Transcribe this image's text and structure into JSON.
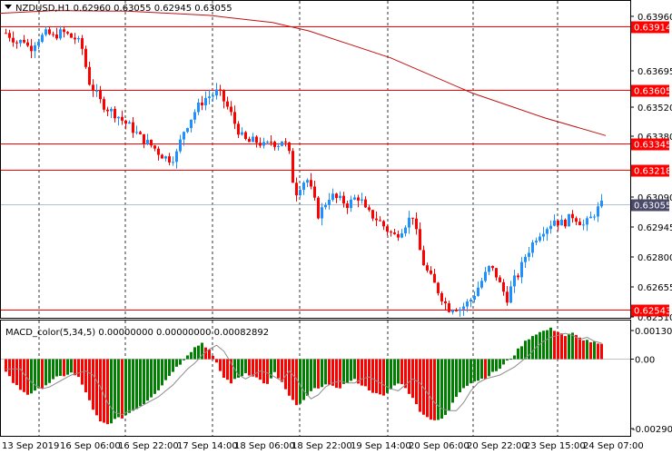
{
  "header": {
    "title": "NZDUSD,H1  0.62960 0.63055 0.62945 0.63055",
    "macd_label": "MACD_color(5,34,5) 0.00000000 0.00000000 0.00082892"
  },
  "price_axis": {
    "ticks": [
      "0.63960",
      "0.63695",
      "0.63520",
      "0.63380",
      "0.63090",
      "0.62945",
      "0.62800",
      "0.62655",
      "0.62510"
    ],
    "min": 0.6251,
    "max": 0.6396
  },
  "macd_axis": {
    "ticks": [
      "0.0013045",
      "0.00",
      "-0.002901"
    ],
    "max": 0.0013045,
    "min": -0.002901
  },
  "levels": {
    "values": [
      "0.63914",
      "0.63605",
      "0.63345",
      "0.63218",
      "0.62543"
    ],
    "current": "0.63055"
  },
  "time_axis": {
    "labels": [
      "13 Sep 2019",
      "16 Sep 06:00",
      "16 Sep 22:00",
      "17 Sep 14:00",
      "18 Sep 06:00",
      "18 Sep 22:00",
      "19 Sep 14:00",
      "20 Sep 06:00",
      "20 Sep 22:00",
      "23 Sep 15:00",
      "24 Sep 07:00"
    ]
  },
  "colors": {
    "bull": "#1e90ff",
    "bear": "#ff0000",
    "level_line": "#ff0000",
    "ma_line": "#c01010",
    "macd_up": "#008000",
    "macd_down": "#ff0000",
    "current_tag": "#4a4a6a",
    "grid": "#000000"
  },
  "chart_data": {
    "type": "candlestick",
    "symbol": "NZDUSD",
    "timeframe": "H1",
    "price_path": [
      0.6388,
      0.6386,
      0.6383,
      0.6385,
      0.638,
      0.6384,
      0.6386,
      0.6388,
      0.6386,
      0.6388,
      0.6388,
      0.6386,
      0.6385,
      0.638,
      0.6365,
      0.636,
      0.6355,
      0.6352,
      0.635,
      0.6348,
      0.6345,
      0.6343,
      0.634,
      0.6337,
      0.6335,
      0.6333,
      0.633,
      0.6328,
      0.6327,
      0.633,
      0.634,
      0.6345,
      0.635,
      0.6354,
      0.6357,
      0.6358,
      0.636,
      0.6355,
      0.635,
      0.6343,
      0.6338,
      0.6335,
      0.6336,
      0.6335,
      0.6333,
      0.6336,
      0.6334,
      0.6337,
      0.633,
      0.631,
      0.6315,
      0.6318,
      0.631,
      0.63,
      0.6305,
      0.631,
      0.6308,
      0.6307,
      0.6305,
      0.6308,
      0.6309,
      0.6302,
      0.63,
      0.6298,
      0.6295,
      0.6292,
      0.629,
      0.6293,
      0.6297,
      0.63,
      0.6285,
      0.6275,
      0.627,
      0.6265,
      0.626,
      0.6255,
      0.6256,
      0.6255,
      0.6257,
      0.626,
      0.6265,
      0.627,
      0.6275,
      0.6272,
      0.6265,
      0.626,
      0.6268,
      0.6272,
      0.628,
      0.6285,
      0.629,
      0.6293,
      0.6295,
      0.6298,
      0.6296,
      0.6297,
      0.63,
      0.6298,
      0.6295,
      0.6298,
      0.6302,
      0.6305
    ],
    "macd_path": [
      -0.0005,
      -0.001,
      -0.0013,
      -0.0015,
      -0.0014,
      -0.0012,
      -0.001,
      -0.0008,
      -0.0007,
      -0.0006,
      -0.0008,
      -0.0014,
      -0.0022,
      -0.0027,
      -0.0028,
      -0.0026,
      -0.0025,
      -0.0023,
      -0.0021,
      -0.0019,
      -0.0016,
      -0.0013,
      -0.0009,
      -0.0005,
      -0.0002,
      0.0002,
      0.0005,
      0.0007,
      0.0004,
      -0.0002,
      -0.0008,
      -0.001,
      -0.0008,
      -0.0006,
      -0.0007,
      -0.0009,
      -0.0011,
      -0.0006,
      -0.001,
      -0.0016,
      -0.002,
      -0.0018,
      -0.0014,
      -0.0012,
      -0.0011,
      -0.0012,
      -0.0012,
      -0.001,
      -0.0009,
      -0.0011,
      -0.0013,
      -0.0015,
      -0.0016,
      -0.0013,
      -0.001,
      -0.0012,
      -0.0017,
      -0.0022,
      -0.0025,
      -0.0026,
      -0.0026,
      -0.0022,
      -0.0016,
      -0.0012,
      -0.001,
      -0.0009,
      -0.0008,
      -0.0006,
      -0.0004,
      -0.0001,
      0.0002,
      0.0006,
      0.0009,
      0.0011,
      0.0012,
      0.0013,
      0.0012,
      0.001,
      0.0011,
      0.0009,
      0.0008,
      0.0007,
      0.0006
    ]
  }
}
